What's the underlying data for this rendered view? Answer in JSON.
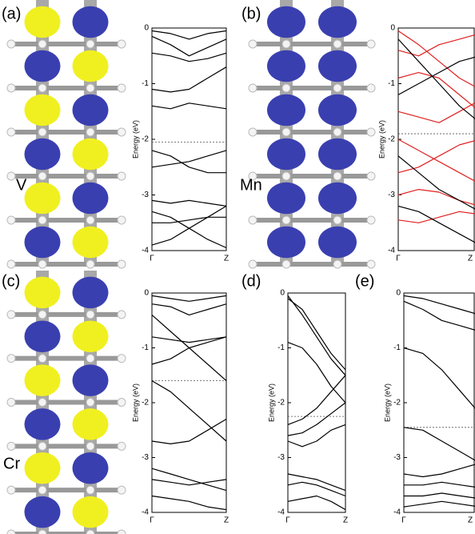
{
  "chart_data": [
    {
      "type": "line",
      "panel_label": "(a)",
      "annotation": "V",
      "ylabel": "Energy (eV)",
      "x": [
        0,
        0.25,
        0.5,
        0.75,
        1
      ],
      "xlim": [
        0,
        1
      ],
      "xticks": [
        {
          "value": 0,
          "label": "Γ"
        },
        {
          "value": 1,
          "label": "Z"
        }
      ],
      "ylim": [
        -4,
        0
      ],
      "yticks": [
        0,
        -1,
        -2,
        -3,
        -4
      ],
      "fermi_level": -2.05,
      "series": [
        {
          "color": "#000000",
          "values": [
            -0.05,
            -0.1,
            -0.2,
            -0.1,
            -0.05
          ]
        },
        {
          "color": "#000000",
          "values": [
            -0.15,
            -0.3,
            -0.5,
            -0.35,
            -0.2
          ]
        },
        {
          "color": "#000000",
          "values": [
            -0.45,
            -0.5,
            -0.6,
            -0.55,
            -0.45
          ]
        },
        {
          "color": "#000000",
          "values": [
            -1.1,
            -1.15,
            -1.1,
            -0.9,
            -0.7
          ]
        },
        {
          "color": "#000000",
          "values": [
            -1.4,
            -1.45,
            -1.35,
            -1.4,
            -1.45
          ]
        },
        {
          "color": "#000000",
          "values": [
            -2.2,
            -2.3,
            -2.5,
            -2.6,
            -2.6
          ]
        },
        {
          "color": "#000000",
          "values": [
            -2.5,
            -2.45,
            -2.4,
            -2.3,
            -2.2
          ]
        },
        {
          "color": "#000000",
          "values": [
            -3.1,
            -3.15,
            -3.1,
            -3.15,
            -3.2
          ]
        },
        {
          "color": "#000000",
          "values": [
            -3.3,
            -3.4,
            -3.6,
            -3.8,
            -3.95
          ]
        },
        {
          "color": "#000000",
          "values": [
            -3.5,
            -3.5,
            -3.45,
            -3.4,
            -3.4
          ]
        },
        {
          "color": "#000000",
          "values": [
            -3.9,
            -3.8,
            -3.6,
            -3.4,
            -3.2
          ]
        }
      ]
    },
    {
      "type": "line",
      "panel_label": "(b)",
      "annotation": "Mn",
      "ylabel": "Energy (eV)",
      "x": [
        0,
        0.25,
        0.5,
        0.75,
        1
      ],
      "xlim": [
        0,
        1
      ],
      "xticks": [
        {
          "value": 0,
          "label": "Γ"
        },
        {
          "value": 1,
          "label": "Z"
        }
      ],
      "ylim": [
        -4,
        0
      ],
      "yticks": [
        0,
        -1,
        -2,
        -3,
        -4
      ],
      "fermi_level": -1.9,
      "series": [
        {
          "color": "#e02020",
          "values": [
            -0.05,
            -0.3,
            -0.6,
            -0.9,
            -1.1
          ]
        },
        {
          "color": "#e02020",
          "values": [
            -0.4,
            -0.5,
            -0.3,
            -0.2,
            -0.1
          ]
        },
        {
          "color": "#e02020",
          "values": [
            -0.9,
            -0.8,
            -0.9,
            -1.2,
            -1.5
          ]
        },
        {
          "color": "#e02020",
          "values": [
            -1.5,
            -1.6,
            -1.7,
            -1.5,
            -1.3
          ]
        },
        {
          "color": "#e02020",
          "values": [
            -2.0,
            -2.2,
            -2.4,
            -2.6,
            -2.8
          ]
        },
        {
          "color": "#e02020",
          "values": [
            -2.6,
            -2.5,
            -2.3,
            -2.1,
            -2.0
          ]
        },
        {
          "color": "#e02020",
          "values": [
            -3.0,
            -2.9,
            -2.95,
            -3.1,
            -3.2
          ]
        },
        {
          "color": "#e02020",
          "values": [
            -3.45,
            -3.5,
            -3.4,
            -3.3,
            -3.35
          ]
        },
        {
          "color": "#000000",
          "values": [
            -0.2,
            -0.6,
            -1.0,
            -1.4,
            -1.7
          ]
        },
        {
          "color": "#000000",
          "values": [
            -1.2,
            -1.0,
            -0.8,
            -0.6,
            -0.5
          ]
        },
        {
          "color": "#000000",
          "values": [
            -2.3,
            -2.6,
            -2.9,
            -3.1,
            -3.3
          ]
        },
        {
          "color": "#000000",
          "values": [
            -3.2,
            -3.3,
            -3.5,
            -3.7,
            -3.9
          ]
        }
      ]
    },
    {
      "type": "line",
      "panel_label": "(c)",
      "annotation": "Cr",
      "ylabel": "Energy (eV)",
      "x": [
        0,
        0.25,
        0.5,
        0.75,
        1
      ],
      "xlim": [
        0,
        1
      ],
      "xticks": [
        {
          "value": 0,
          "label": "Γ"
        },
        {
          "value": 1,
          "label": "Z"
        }
      ],
      "ylim": [
        -4,
        0
      ],
      "yticks": [
        0,
        -1,
        -2,
        -3,
        -4
      ],
      "fermi_level": -1.6,
      "series": [
        {
          "color": "#000000",
          "values": [
            -0.05,
            -0.1,
            -0.15,
            -0.1,
            -0.05
          ]
        },
        {
          "color": "#000000",
          "values": [
            -0.2,
            -0.25,
            -0.4,
            -0.3,
            -0.2
          ]
        },
        {
          "color": "#000000",
          "values": [
            -0.4,
            -0.7,
            -1.0,
            -1.3,
            -1.6
          ]
        },
        {
          "color": "#000000",
          "values": [
            -0.8,
            -0.85,
            -0.9,
            -0.85,
            -0.8
          ]
        },
        {
          "color": "#000000",
          "values": [
            -1.3,
            -1.2,
            -1.0,
            -0.9,
            -0.8
          ]
        },
        {
          "color": "#000000",
          "values": [
            -1.6,
            -1.8,
            -2.1,
            -2.4,
            -2.7
          ]
        },
        {
          "color": "#000000",
          "values": [
            -2.7,
            -2.75,
            -2.7,
            -2.5,
            -2.3
          ]
        },
        {
          "color": "#000000",
          "values": [
            -3.2,
            -3.3,
            -3.4,
            -3.5,
            -3.6
          ]
        },
        {
          "color": "#000000",
          "values": [
            -3.4,
            -3.45,
            -3.5,
            -3.45,
            -3.4
          ]
        },
        {
          "color": "#000000",
          "values": [
            -3.7,
            -3.75,
            -3.8,
            -3.9,
            -3.95
          ]
        }
      ]
    },
    {
      "type": "line",
      "panel_label": "(d)",
      "ylabel": "Energy (eV)",
      "x": [
        0,
        0.25,
        0.5,
        0.75,
        1
      ],
      "xlim": [
        0,
        1
      ],
      "xticks": [
        {
          "value": 0,
          "label": "Γ"
        },
        {
          "value": 1,
          "label": "Z"
        }
      ],
      "ylim": [
        -4,
        0
      ],
      "yticks": [
        0,
        -1,
        -2,
        -3,
        -4
      ],
      "fermi_level": -2.25,
      "series": [
        {
          "color": "#000000",
          "values": [
            -0.05,
            -0.4,
            -0.8,
            -1.2,
            -1.5
          ]
        },
        {
          "color": "#000000",
          "values": [
            -0.1,
            -0.3,
            -0.7,
            -1.1,
            -1.4
          ]
        },
        {
          "color": "#000000",
          "values": [
            -0.9,
            -1.0,
            -1.3,
            -1.7,
            -2.0
          ]
        },
        {
          "color": "#000000",
          "values": [
            -2.4,
            -2.3,
            -2.1,
            -1.8,
            -1.5
          ]
        },
        {
          "color": "#000000",
          "values": [
            -2.6,
            -2.55,
            -2.4,
            -2.2,
            -2.0
          ]
        },
        {
          "color": "#000000",
          "values": [
            -2.7,
            -2.8,
            -2.7,
            -2.5,
            -2.4
          ]
        },
        {
          "color": "#000000",
          "values": [
            -3.3,
            -3.35,
            -3.4,
            -3.5,
            -3.6
          ]
        },
        {
          "color": "#000000",
          "values": [
            -3.5,
            -3.45,
            -3.5,
            -3.6,
            -3.7
          ]
        },
        {
          "color": "#000000",
          "values": [
            -3.8,
            -3.75,
            -3.7,
            -3.8,
            -3.95
          ]
        }
      ]
    },
    {
      "type": "line",
      "panel_label": "(e)",
      "ylabel": "Energy (eV)",
      "x": [
        0,
        0.25,
        0.5,
        0.75,
        1
      ],
      "xlim": [
        0,
        1
      ],
      "xticks": [
        {
          "value": 0,
          "label": "Γ"
        },
        {
          "value": 1,
          "label": "Z"
        }
      ],
      "ylim": [
        -4,
        0
      ],
      "yticks": [
        0,
        -1,
        -2,
        -3,
        -4
      ],
      "fermi_level": -2.45,
      "series": [
        {
          "color": "#000000",
          "values": [
            -0.05,
            -0.1,
            -0.2,
            -0.3,
            -0.4
          ]
        },
        {
          "color": "#000000",
          "values": [
            -0.15,
            -0.3,
            -0.5,
            -0.6,
            -0.7
          ]
        },
        {
          "color": "#000000",
          "values": [
            -1.0,
            -1.1,
            -1.4,
            -1.8,
            -2.2
          ]
        },
        {
          "color": "#000000",
          "values": [
            -2.45,
            -2.5,
            -2.7,
            -2.9,
            -3.1
          ]
        },
        {
          "color": "#000000",
          "values": [
            -3.3,
            -3.35,
            -3.3,
            -3.2,
            -3.1
          ]
        },
        {
          "color": "#000000",
          "values": [
            -3.5,
            -3.5,
            -3.45,
            -3.5,
            -3.55
          ]
        },
        {
          "color": "#000000",
          "values": [
            -3.7,
            -3.7,
            -3.65,
            -3.7,
            -3.75
          ]
        },
        {
          "color": "#000000",
          "values": [
            -3.9,
            -3.85,
            -3.8,
            -3.85,
            -3.9
          ]
        }
      ]
    }
  ]
}
